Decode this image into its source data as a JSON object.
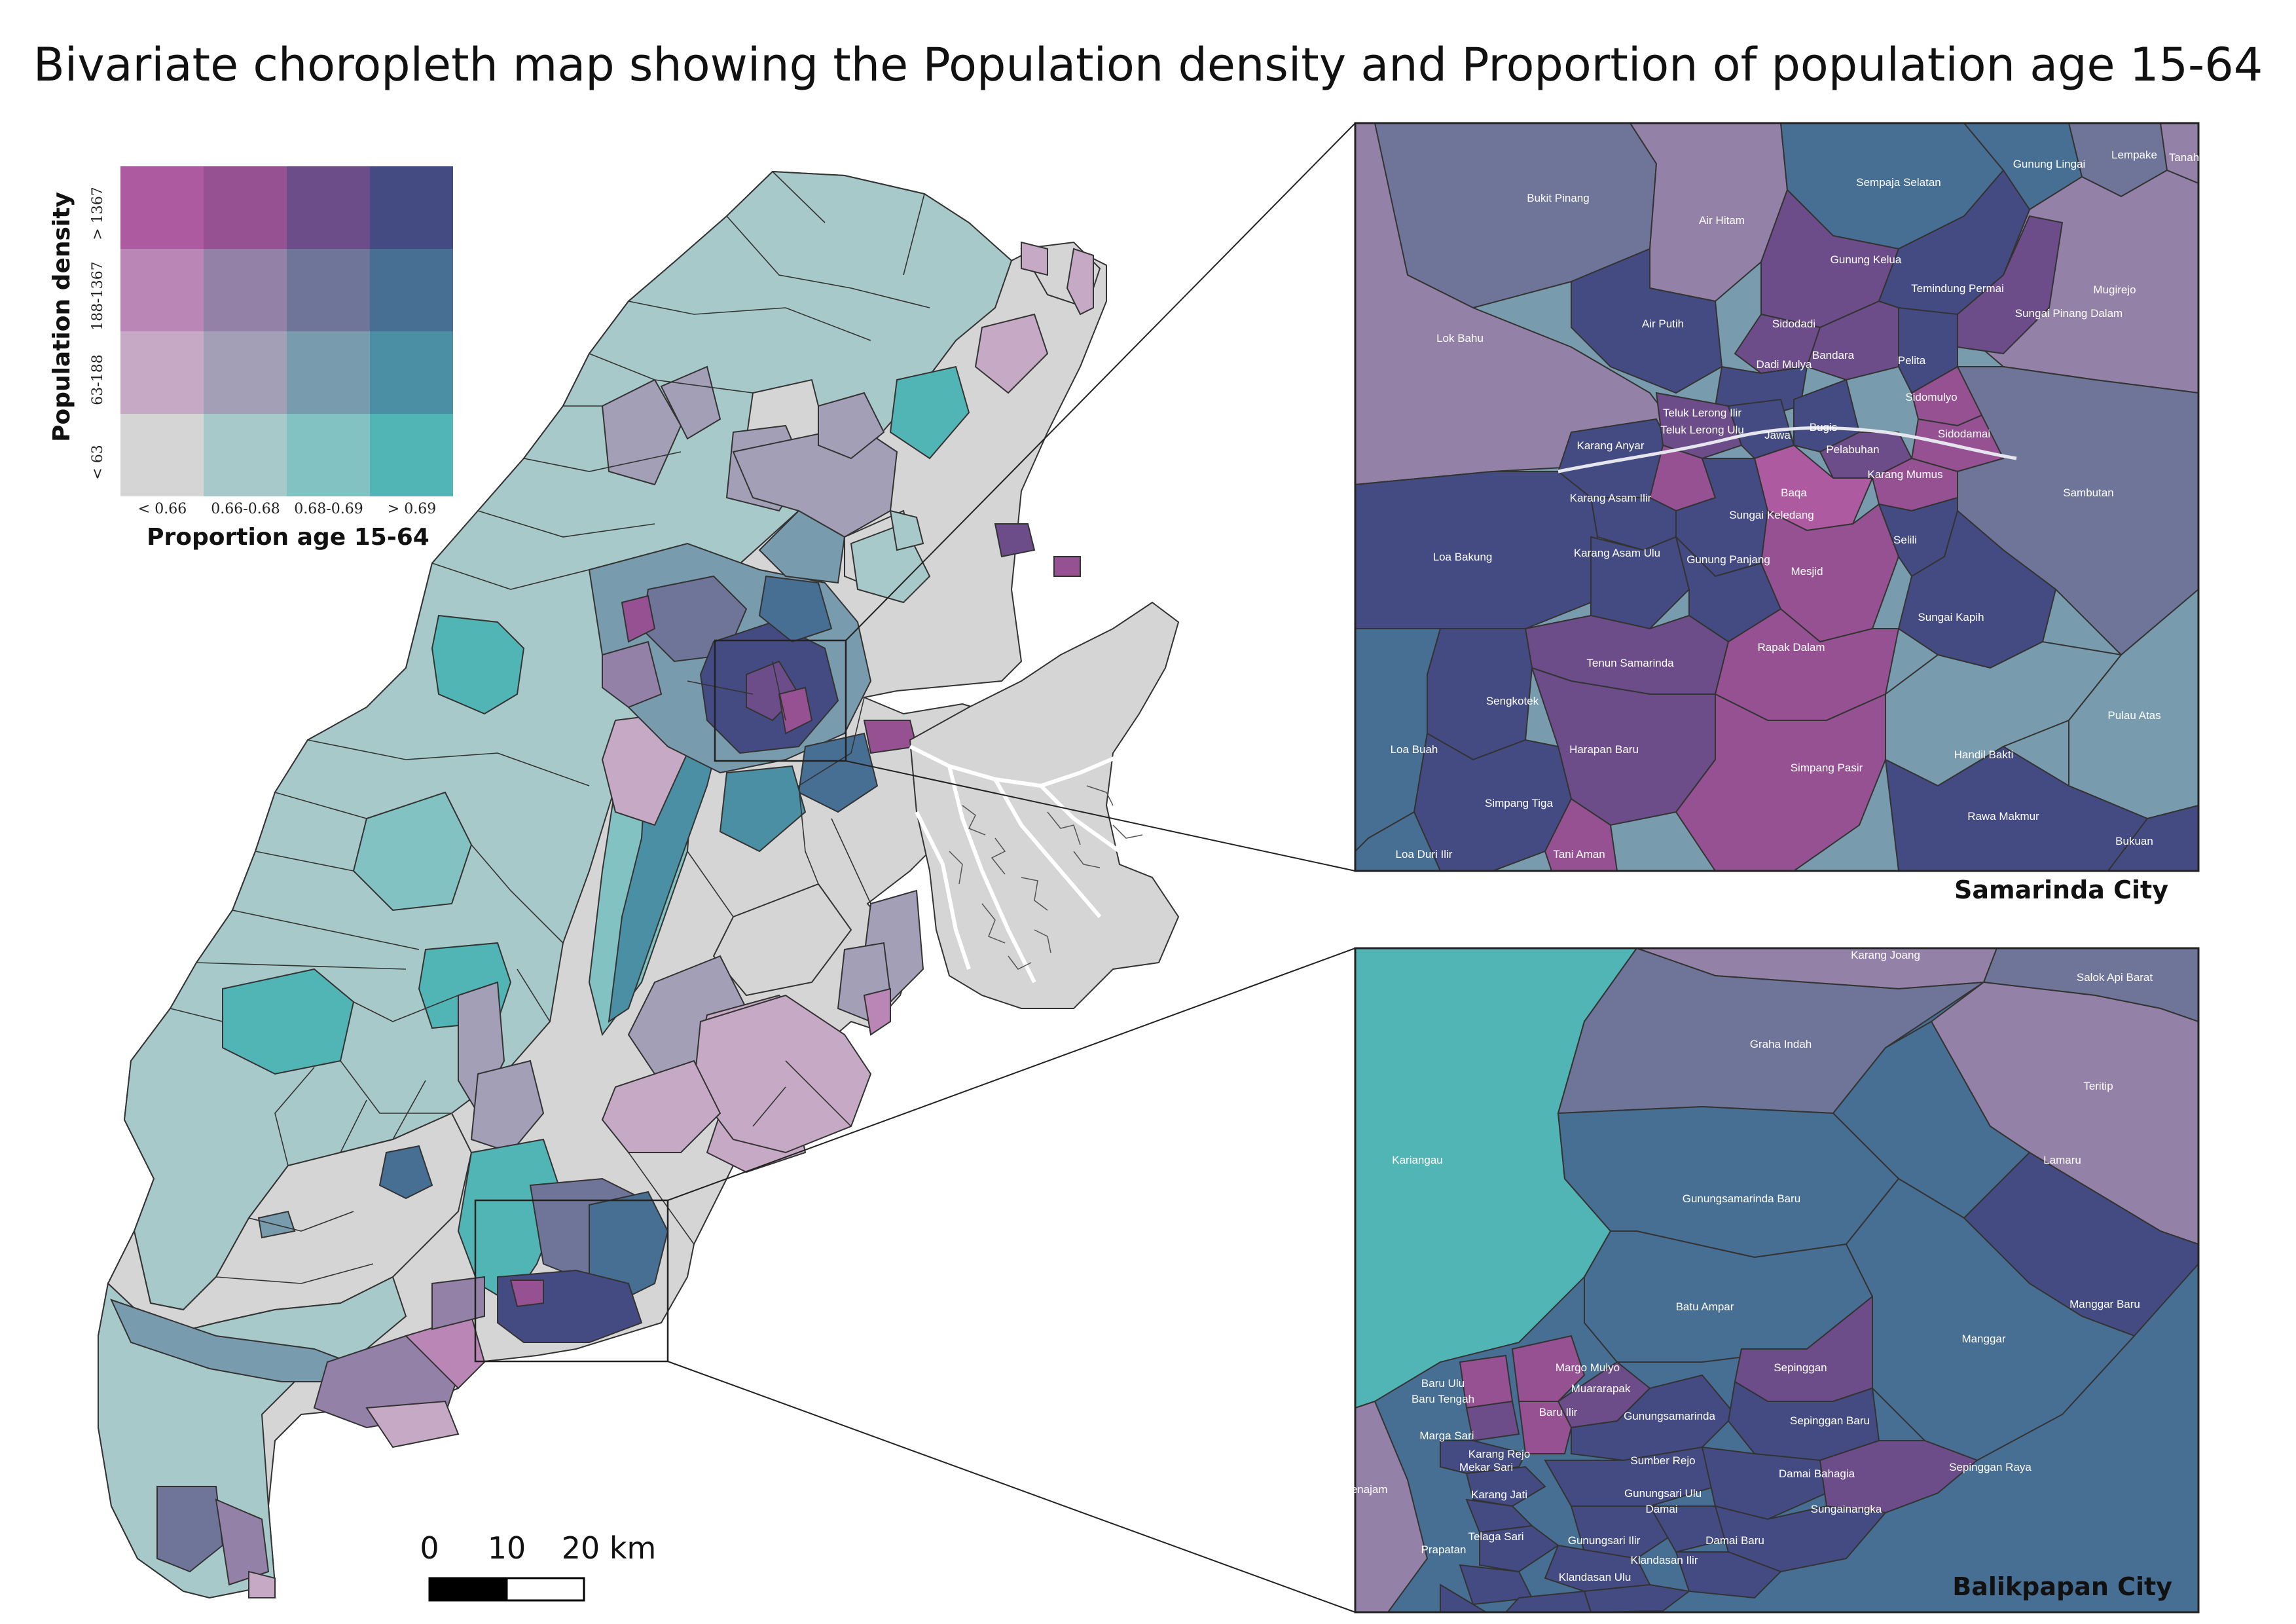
{
  "title": "Bivariate choropleth map showing the Population density and Proportion of population age 15-64",
  "legend": {
    "y_title": "Population density",
    "x_title": "Proportion age 15-64",
    "y_ticks": [
      "< 63",
      "63-188",
      "188-1367",
      "> 1367"
    ],
    "x_ticks": [
      "< 0.66",
      "0.66-0.68",
      "0.68-0.69",
      "> 0.69"
    ],
    "colors": [
      [
        "#d5d5d5",
        "#a8c9c9",
        "#82c2c2",
        "#52b5b5"
      ],
      [
        "#c6a9c4",
        "#a29fb7",
        "#789bad",
        "#4a8fa3"
      ],
      [
        "#b986b5",
        "#9481a7",
        "#6f7599",
        "#476e93"
      ],
      [
        "#ad5aa0",
        "#955192",
        "#6c4d8a",
        "#444b83"
      ]
    ]
  },
  "scalebar": {
    "labels": [
      "0",
      "10",
      "20 km"
    ]
  },
  "insets": [
    {
      "caption": "Samarinda City",
      "labels": [
        "Bukit Pinang",
        "Air Hitam",
        "Sempaja Selatan",
        "Gunung Lingai",
        "Lempake",
        "Tanah",
        "Gunung Kelua",
        "Temindung Permai",
        "Mugirejo",
        "Sungai Pinang Dalam",
        "Lok Bahu",
        "Air Putih",
        "Sidodadi",
        "Dadi Mulya",
        "Bandara",
        "Pelita",
        "Sidomulyo",
        "Sidodamai",
        "Teluk Lerong Ilir",
        "Teluk Lerong Ulu",
        "Jawa",
        "Bugis",
        "Pelabuhan",
        "Karang Anyar",
        "Karang Mumus",
        "Sambutan",
        "Baqa",
        "Karang Asam Ilir",
        "Sungai Keledang",
        "Loa Bakung",
        "Karang Asam Ulu",
        "Gunung Panjang",
        "Mesjid",
        "Selili",
        "Sungai Kapih",
        "Tenun Samarinda",
        "Rapak Dalam",
        "Sengkotek",
        "Pulau Atas",
        "Loa Buah",
        "Harapan Baru",
        "Simpang Pasir",
        "Handil Bakti",
        "Simpang Tiga",
        "Rawa Makmur",
        "Loa Duri Ilir",
        "Tani Aman",
        "Bukuan"
      ]
    },
    {
      "caption": "Balikpapan City",
      "labels": [
        "Karang Joang",
        "Salok Api Barat",
        "Graha Indah",
        "Teritip",
        "Kariangau",
        "Lamaru",
        "Gunungsamarinda Baru",
        "Manggar Baru",
        "Batu Ampar",
        "Manggar",
        "Baru Ulu",
        "Baru Tengah",
        "Margo Mulyo",
        "Muararapak",
        "Sepinggan",
        "Baru Ilir",
        "Gunungsamarinda",
        "Sepinggan Baru",
        "Marga Sari",
        "Karang Rejo",
        "Mekar Sari",
        "Sumber Rejo",
        "Damai Bahagia",
        "Sepinggan Raya",
        "Karang Jati",
        "Gunungsari Ulu",
        "Damai",
        "Sungainangka",
        "Penajam",
        "Telaga Sari",
        "Gunungsari Ilir",
        "Damai Baru",
        "Prapatan",
        "Klandasan Ilir",
        "Klandasan Ulu"
      ]
    }
  ]
}
